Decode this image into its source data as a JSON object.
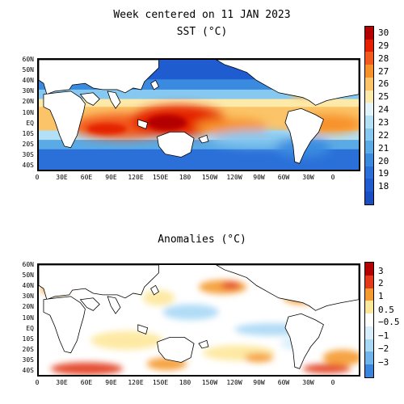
{
  "sst": {
    "title_line1": "Week centered on 11 JAN 2023",
    "title_line2": "SST (°C)",
    "colorbar": {
      "ticks": [
        "30",
        "29",
        "28",
        "27",
        "26",
        "25",
        "24",
        "23",
        "22",
        "21",
        "20",
        "19",
        "18"
      ],
      "colors": [
        "#b40000",
        "#e42000",
        "#f25a1e",
        "#f7912a",
        "#fbc468",
        "#fde9a8",
        "#e3f4fb",
        "#b3e0f5",
        "#86c8ef",
        "#5aaae6",
        "#3a8be0",
        "#2a70d8",
        "#1f5cd0",
        "#1a4fc4"
      ]
    }
  },
  "anomaly": {
    "title": "Anomalies (°C)",
    "colorbar": {
      "ticks": [
        "3",
        "2",
        "1",
        "0.5",
        "−0.5",
        "−1",
        "−2",
        "−3"
      ],
      "colors": [
        "#b40000",
        "#e23a1a",
        "#f59a2e",
        "#fde79a",
        "#ffffff",
        "#d8eefb",
        "#a9d8f5",
        "#6fb5ec",
        "#3a86dc"
      ]
    }
  },
  "lat_labels": [
    "60N",
    "50N",
    "40N",
    "30N",
    "20N",
    "10N",
    "EQ",
    "10S",
    "20S",
    "30S",
    "40S"
  ],
  "lon_labels": [
    "0",
    "30E",
    "60E",
    "90E",
    "120E",
    "150E",
    "180",
    "150W",
    "120W",
    "90W",
    "60W",
    "30W",
    "0"
  ],
  "colors": {
    "land": "#ffffff",
    "coast": "#000000",
    "frame": "#000000"
  }
}
